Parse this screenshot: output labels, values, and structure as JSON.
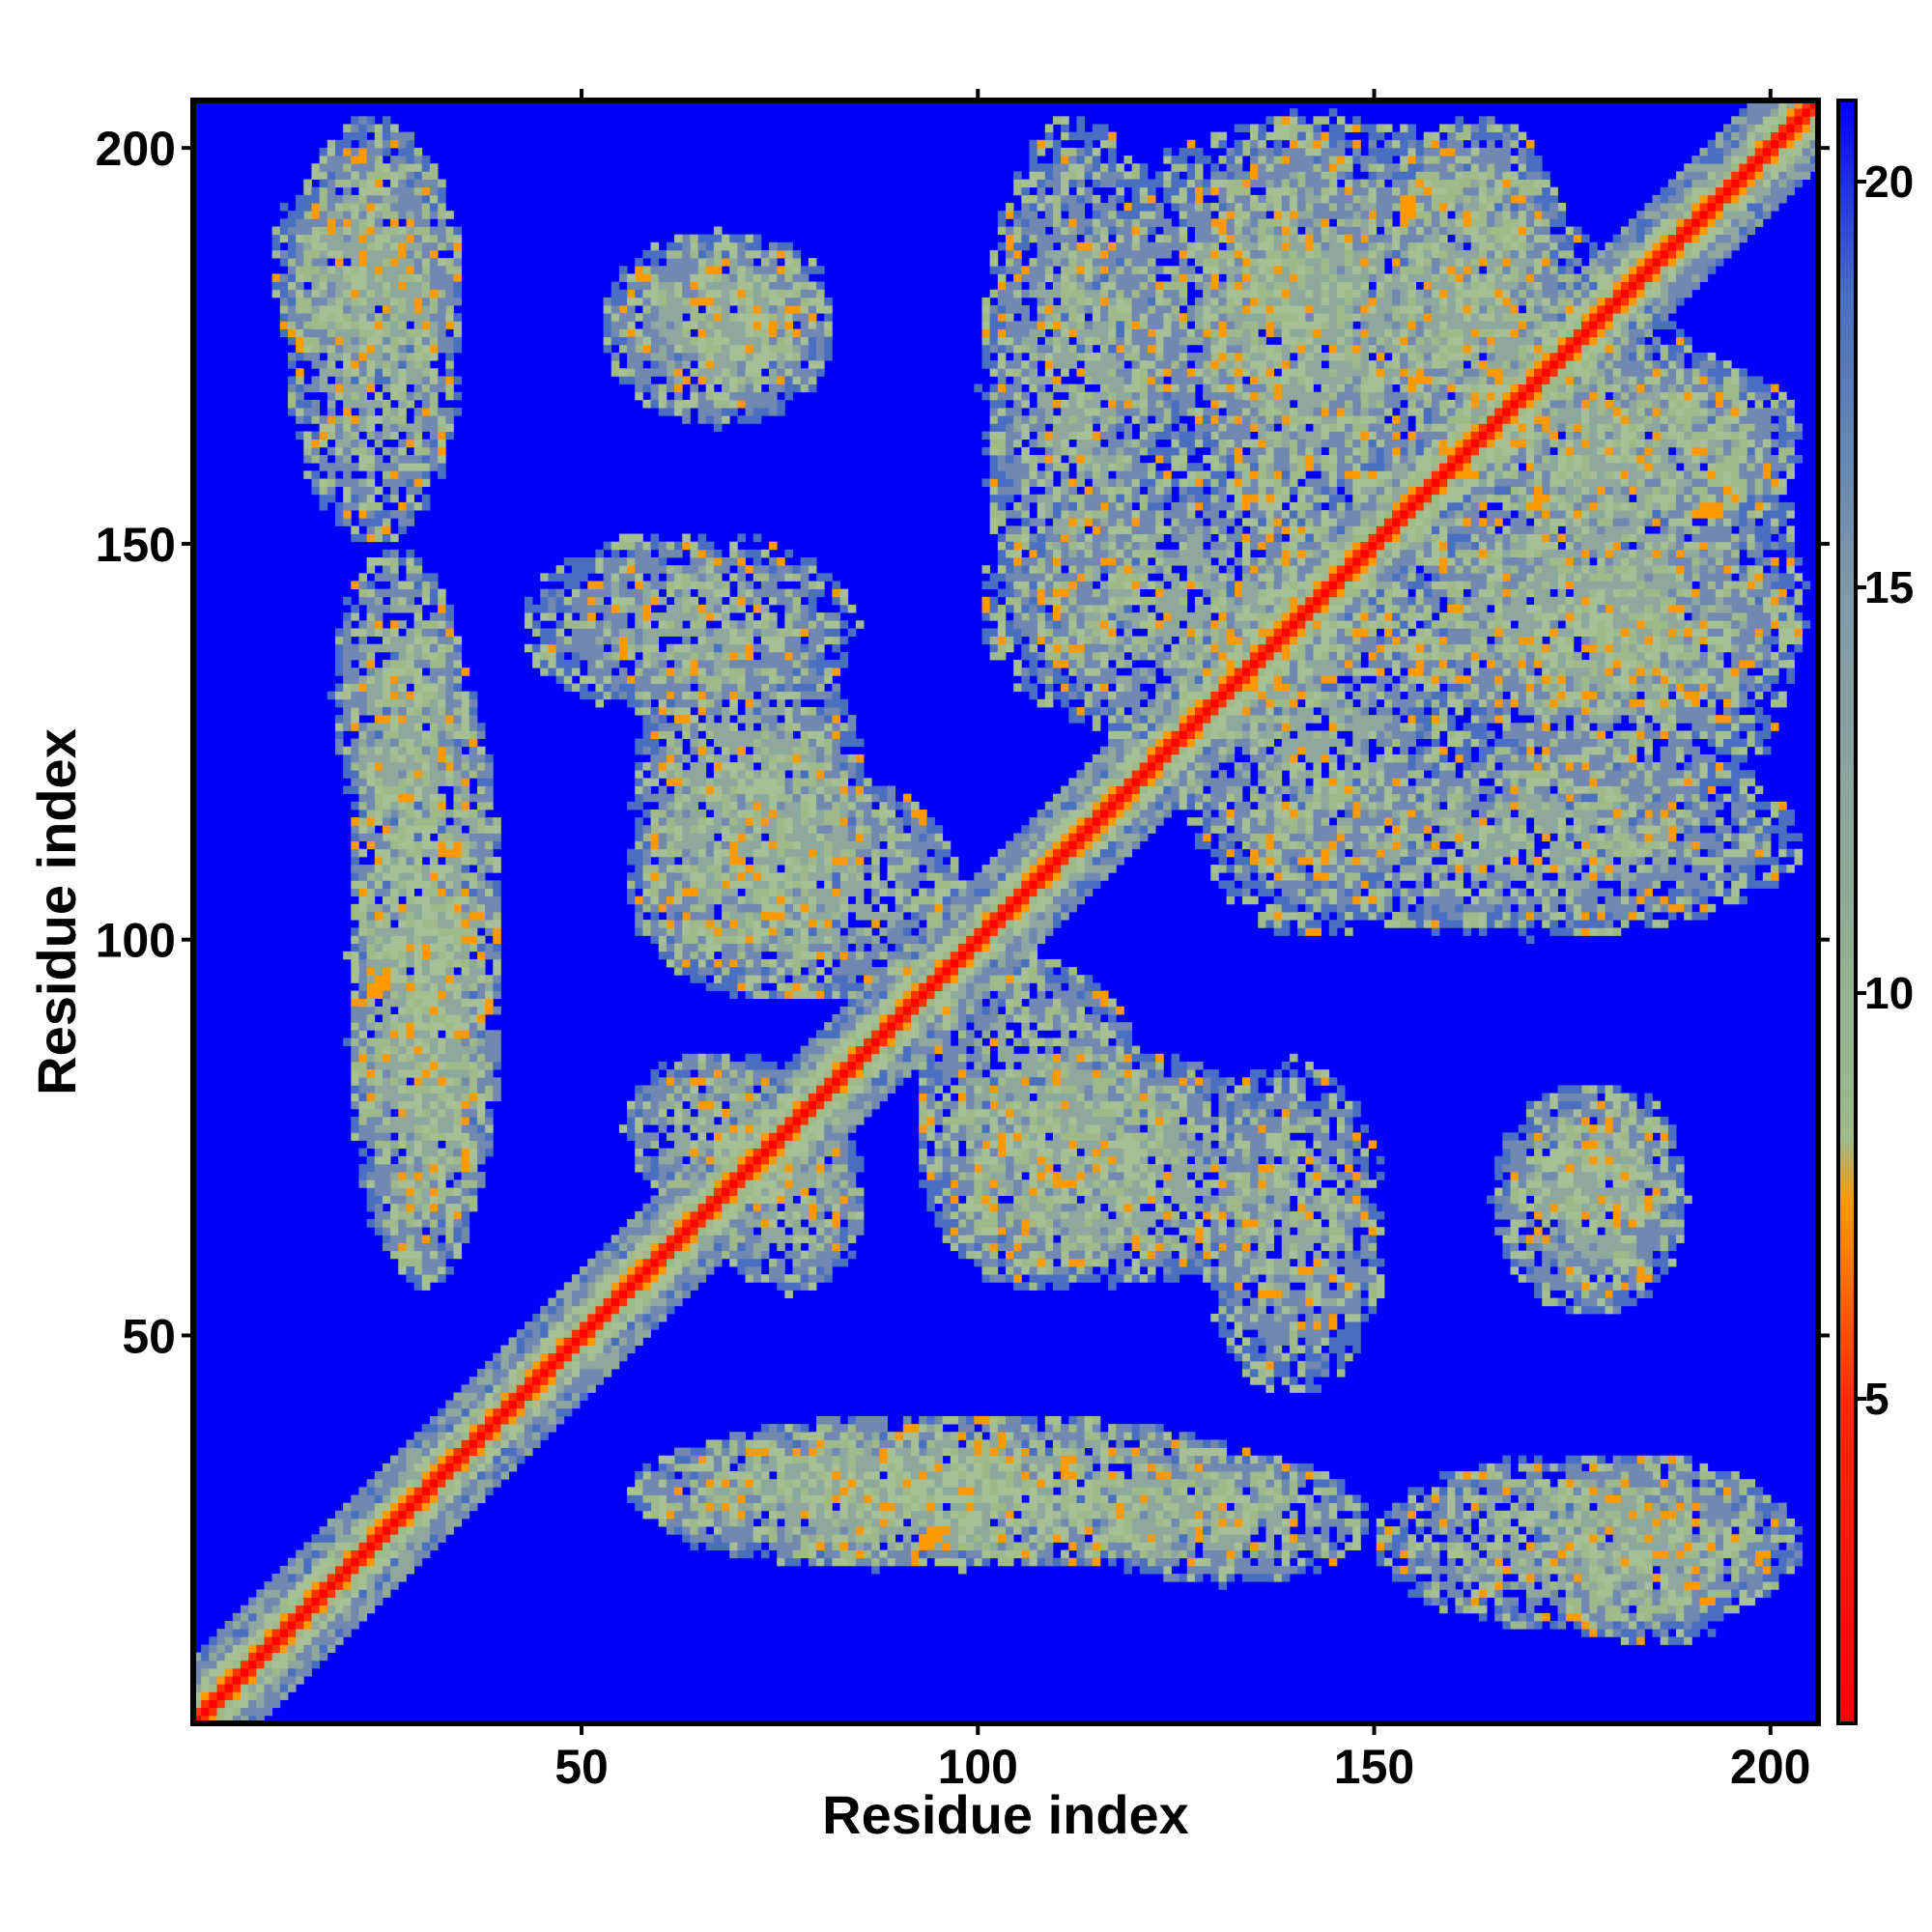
{
  "chart_data": {
    "type": "heatmap",
    "title": "",
    "xlabel": "Residue index",
    "ylabel": "Residue index",
    "x_ticks": [
      50,
      100,
      150,
      200
    ],
    "y_ticks": [
      50,
      100,
      150,
      200
    ],
    "xlim": [
      1,
      206
    ],
    "ylim": [
      1,
      206
    ],
    "colorbar": {
      "ticks": [
        5,
        10,
        15,
        20
      ],
      "range": [
        1,
        21
      ],
      "colors": [
        "#ff0000",
        "#ff9900",
        "#9fb98a",
        "#4a6fc0",
        "#0000ff"
      ]
    },
    "diagonal_band": {
      "width": 4
    },
    "contact_regions": [
      {
        "x": [
          10,
          35
        ],
        "y": [
          170,
          200
        ],
        "level": 12
      },
      {
        "x": [
          18,
          35
        ],
        "y": [
          112,
          150
        ],
        "level": 11
      },
      {
        "x": [
          20,
          38
        ],
        "y": [
          56,
          118
        ],
        "level": 11
      },
      {
        "x": [
          55,
          82
        ],
        "y": [
          170,
          190
        ],
        "level": 12
      },
      {
        "x": [
          42,
          85
        ],
        "y": [
          128,
          152
        ],
        "level": 12
      },
      {
        "x": [
          55,
          98
        ],
        "y": [
          92,
          122
        ],
        "level": 11
      },
      {
        "x": [
          55,
          80
        ],
        "y": [
          66,
          86
        ],
        "level": 11
      },
      {
        "x": [
          56,
          140
        ],
        "y": [
          20,
          40
        ],
        "level": 10
      },
      {
        "x": [
          150,
          205
        ],
        "y": [
          12,
          35
        ],
        "level": 11
      },
      {
        "x": [
          94,
          140
        ],
        "y": [
          56,
          86
        ],
        "level": 11
      },
      {
        "x": [
          165,
          190
        ],
        "y": [
          52,
          82
        ],
        "level": 11
      },
      {
        "x": [
          135,
          205
        ],
        "y": [
          100,
          125
        ],
        "level": 12
      },
      {
        "x": [
          100,
          150
        ],
        "y": [
          125,
          160
        ],
        "level": 12
      },
      {
        "x": [
          150,
          205
        ],
        "y": [
          128,
          152
        ],
        "level": 11
      },
      {
        "x": [
          110,
          180
        ],
        "y": [
          155,
          205
        ],
        "level": 12
      },
      {
        "x": [
          160,
          205
        ],
        "y": [
          152,
          175
        ],
        "level": 11
      }
    ]
  }
}
